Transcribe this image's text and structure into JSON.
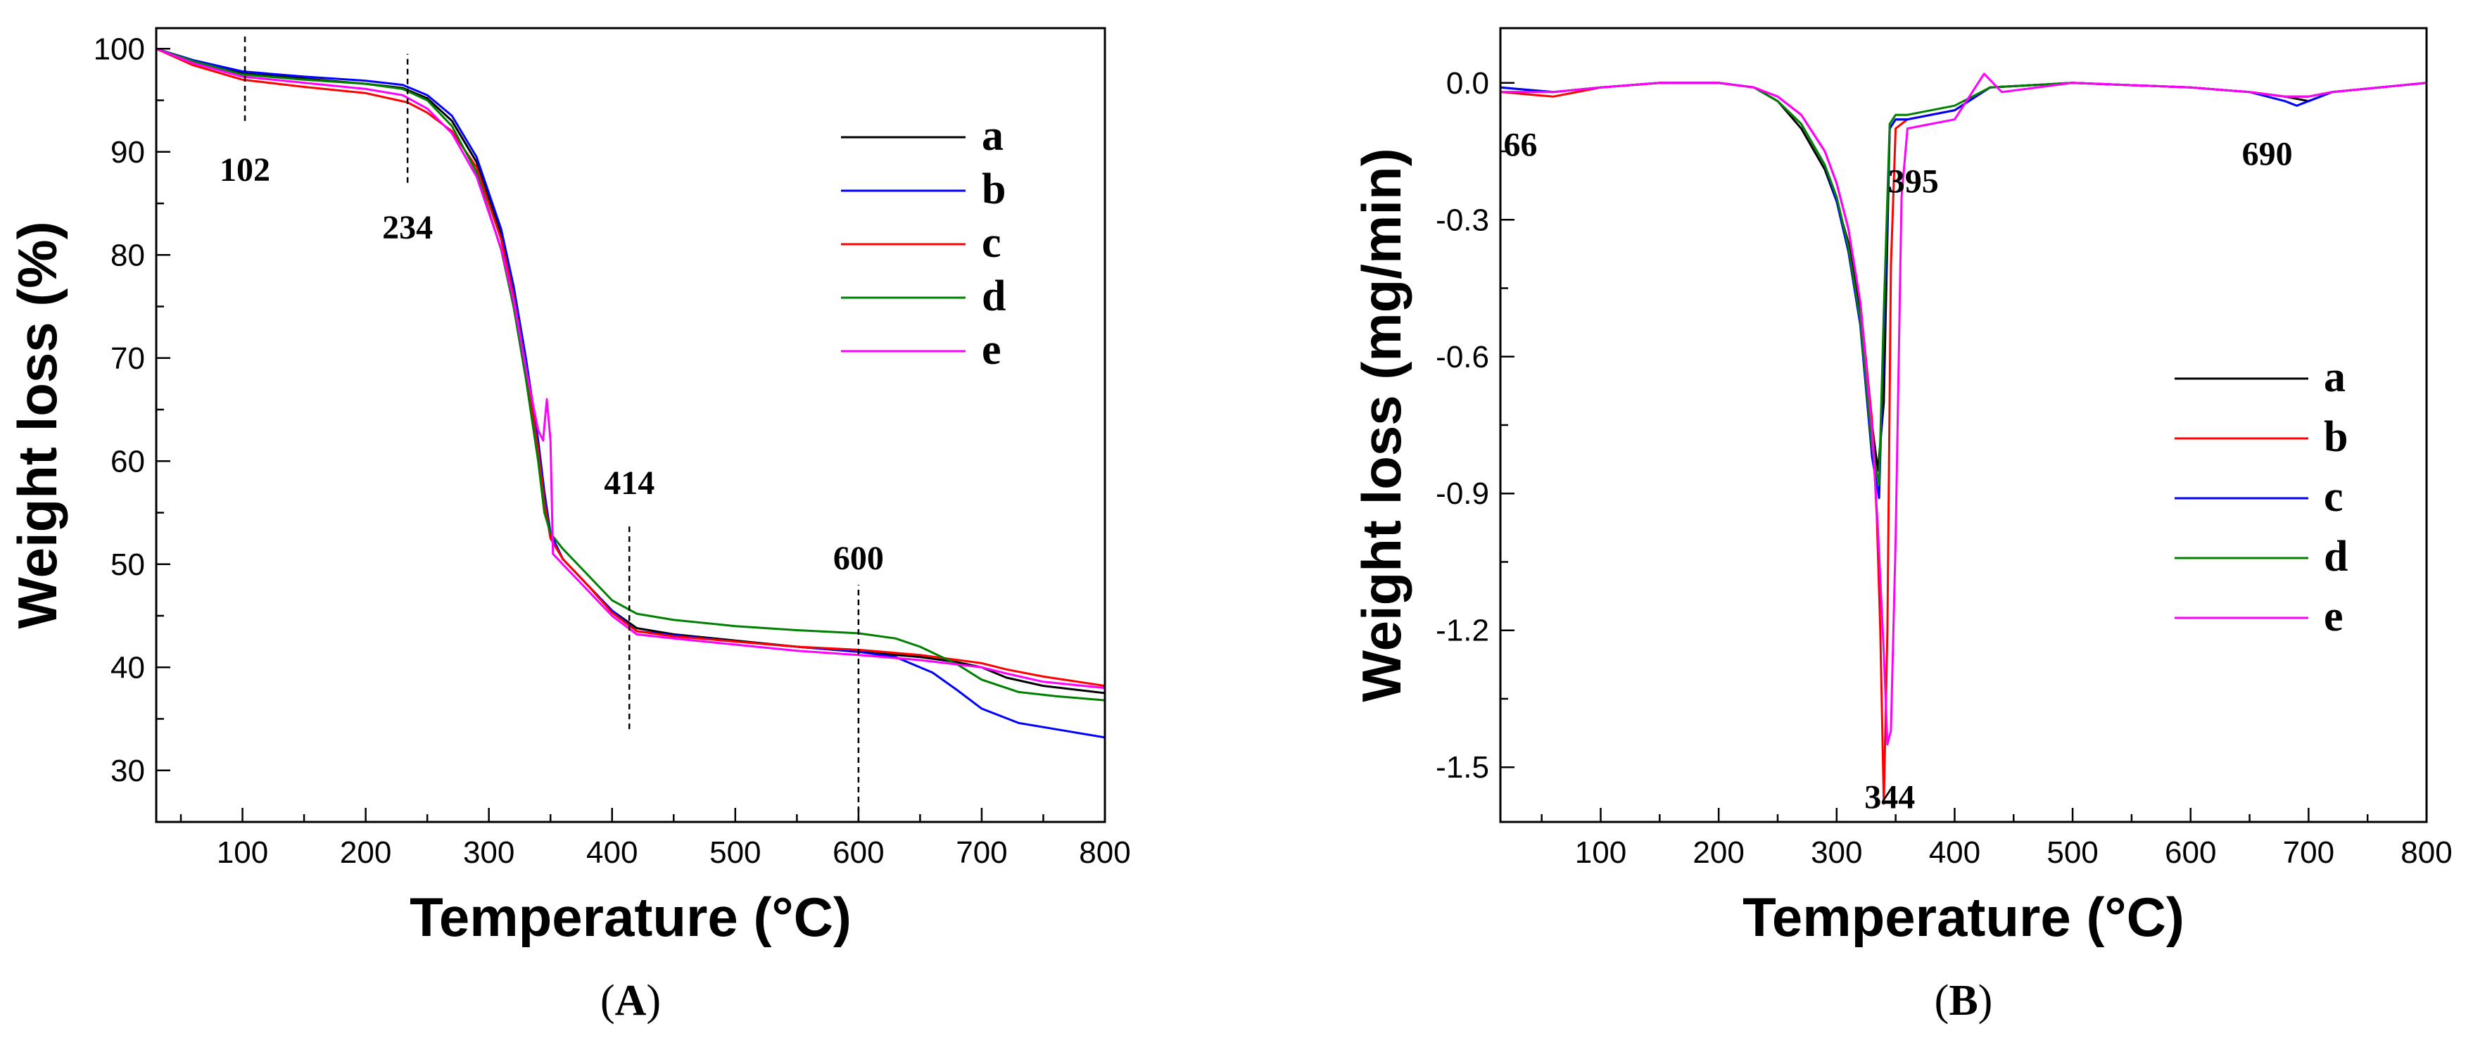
{
  "chart_data": [
    {
      "type": "line",
      "panel": "A",
      "caption_open": "(",
      "caption_letter": "A",
      "caption_close": ")",
      "xlabel": "Temperature (°C)",
      "ylabel": "Weight loss (%)",
      "xlim": [
        30,
        800
      ],
      "ylim": [
        25,
        102
      ],
      "xticks": [
        100,
        200,
        300,
        400,
        500,
        600,
        700,
        800
      ],
      "yticks": [
        30,
        40,
        50,
        60,
        70,
        80,
        90,
        100
      ],
      "legend_position": "top-right",
      "annotations": [
        {
          "text": "102",
          "x": 102,
          "y": 87.2,
          "line": [
            [
              102,
              93
            ],
            [
              102,
              101.5
            ]
          ]
        },
        {
          "text": "234",
          "x": 234,
          "y": 81.6,
          "line": [
            [
              234,
              87
            ],
            [
              234,
              99.5
            ]
          ]
        },
        {
          "text": "414",
          "x": 414,
          "y": 56.8,
          "line": [
            [
              414,
              34
            ],
            [
              414,
              54
            ]
          ]
        },
        {
          "text": "600",
          "x": 600,
          "y": 49.5,
          "line": [
            [
              600,
              25
            ],
            [
              600,
              48
            ]
          ]
        }
      ],
      "series": [
        {
          "name": "a",
          "color": "#000000",
          "x": [
            30,
            60,
            100,
            150,
            200,
            230,
            250,
            270,
            290,
            310,
            320,
            330,
            340,
            345,
            350,
            360,
            380,
            400,
            420,
            450,
            500,
            550,
            600,
            650,
            680,
            700,
            720,
            750,
            800
          ],
          "y": [
            100,
            98.8,
            97.6,
            97.1,
            96.6,
            96.2,
            95.2,
            93,
            89,
            82,
            77,
            70,
            62,
            57,
            53,
            50.5,
            48,
            45.5,
            43.8,
            43.2,
            42.6,
            42,
            41.5,
            41,
            40.5,
            40,
            39,
            38.2,
            37.5
          ]
        },
        {
          "name": "b",
          "color": "#0000ff",
          "x": [
            30,
            60,
            100,
            150,
            200,
            230,
            250,
            270,
            290,
            310,
            320,
            330,
            340,
            345,
            350,
            360,
            380,
            400,
            420,
            450,
            500,
            550,
            600,
            630,
            660,
            680,
            700,
            730,
            760,
            800
          ],
          "y": [
            100,
            98.9,
            97.8,
            97.3,
            96.9,
            96.5,
            95.5,
            93.5,
            89.5,
            82.5,
            77,
            70,
            62,
            57,
            53,
            50.5,
            48,
            45.5,
            43.5,
            43.1,
            42.5,
            42,
            41.5,
            41,
            39.5,
            37.8,
            36,
            34.6,
            34,
            33.2
          ]
        },
        {
          "name": "c",
          "color": "#ff0000",
          "x": [
            30,
            60,
            100,
            150,
            200,
            234,
            250,
            270,
            290,
            310,
            320,
            330,
            340,
            345,
            350,
            360,
            380,
            400,
            420,
            450,
            500,
            550,
            600,
            650,
            700,
            720,
            750,
            800
          ],
          "y": [
            100,
            98.4,
            97,
            96.3,
            95.7,
            94.8,
            93.8,
            92,
            88.5,
            81.5,
            76,
            69,
            61,
            56,
            52.5,
            50.5,
            48,
            45.3,
            43.5,
            43,
            42.5,
            42,
            41.7,
            41.2,
            40.4,
            39.8,
            39.1,
            38.2
          ]
        },
        {
          "name": "d",
          "color": "#008000",
          "x": [
            30,
            60,
            100,
            150,
            200,
            230,
            250,
            270,
            290,
            310,
            320,
            330,
            340,
            345,
            350,
            360,
            380,
            400,
            420,
            450,
            500,
            550,
            600,
            630,
            650,
            680,
            700,
            730,
            760,
            800
          ],
          "y": [
            100,
            98.8,
            97.5,
            97,
            96.6,
            96.1,
            95,
            92.5,
            88,
            80.5,
            75,
            68,
            60,
            55,
            53,
            51.5,
            49,
            46.5,
            45.2,
            44.6,
            44,
            43.6,
            43.3,
            42.8,
            42,
            40.3,
            38.8,
            37.6,
            37.2,
            36.8
          ]
        },
        {
          "name": "e",
          "color": "#ff00ff",
          "x": [
            30,
            60,
            100,
            150,
            200,
            230,
            250,
            270,
            290,
            310,
            320,
            330,
            340,
            344,
            347,
            350,
            352,
            360,
            380,
            400,
            420,
            450,
            500,
            550,
            600,
            650,
            700,
            720,
            750,
            800
          ],
          "y": [
            100,
            98.6,
            97.3,
            96.7,
            96.1,
            95.5,
            94.2,
            91.8,
            87.6,
            80.6,
            75.6,
            69,
            63,
            62,
            66,
            62,
            51,
            50,
            47.5,
            45,
            43.2,
            42.8,
            42.2,
            41.6,
            41.2,
            40.7,
            40,
            39.4,
            38.6,
            38
          ]
        }
      ]
    },
    {
      "type": "line",
      "panel": "B",
      "caption_open": "(",
      "caption_letter": "B",
      "caption_close": ")",
      "xlabel": "Temperature (°C)",
      "ylabel": "Weight loss (mg/min)",
      "xlim": [
        15,
        800
      ],
      "ylim": [
        -1.62,
        0.12
      ],
      "xticks": [
        100,
        200,
        300,
        400,
        500,
        600,
        700,
        800
      ],
      "yticks": [
        0.0,
        -0.3,
        -0.6,
        -0.9,
        -1.2,
        -1.5
      ],
      "ytick_labels": [
        "0.0",
        "-0.3",
        "-0.6",
        "-0.9",
        "-1.2",
        "-1.5"
      ],
      "legend_position": "bottom-right",
      "annotations": [
        {
          "text": "66",
          "x": 32,
          "y": -0.16
        },
        {
          "text": "395",
          "x": 365,
          "y": -0.24
        },
        {
          "text": "690",
          "x": 665,
          "y": -0.18
        },
        {
          "text": "344",
          "x": 345,
          "y": -1.59
        }
      ],
      "series": [
        {
          "name": "a",
          "color": "#000000",
          "x": [
            15,
            60,
            100,
            150,
            200,
            230,
            250,
            270,
            290,
            300,
            310,
            320,
            330,
            335,
            340,
            345,
            350,
            360,
            380,
            400,
            430,
            500,
            600,
            650,
            680,
            700,
            720,
            800
          ],
          "y": [
            -0.01,
            -0.02,
            -0.01,
            0.0,
            0.0,
            -0.01,
            -0.04,
            -0.1,
            -0.19,
            -0.26,
            -0.35,
            -0.5,
            -0.75,
            -0.85,
            -0.7,
            -0.1,
            -0.08,
            -0.08,
            -0.07,
            -0.06,
            -0.01,
            0.0,
            -0.01,
            -0.02,
            -0.03,
            -0.04,
            -0.02,
            0.0
          ]
        },
        {
          "name": "b",
          "color": "#ff0000",
          "x": [
            15,
            60,
            100,
            150,
            200,
            230,
            250,
            270,
            290,
            300,
            310,
            320,
            330,
            334,
            337,
            340,
            343,
            346,
            350,
            360,
            380,
            400,
            430,
            500,
            600,
            650,
            680,
            700,
            720,
            800
          ],
          "y": [
            -0.02,
            -0.03,
            -0.01,
            0.0,
            0.0,
            -0.01,
            -0.03,
            -0.07,
            -0.15,
            -0.22,
            -0.32,
            -0.48,
            -0.74,
            -0.95,
            -1.2,
            -1.58,
            -1.2,
            -0.4,
            -0.1,
            -0.08,
            -0.07,
            -0.06,
            -0.01,
            0.0,
            -0.01,
            -0.02,
            -0.03,
            -0.03,
            -0.02,
            0.0
          ]
        },
        {
          "name": "c",
          "color": "#0000ff",
          "x": [
            15,
            60,
            100,
            150,
            200,
            230,
            250,
            270,
            290,
            300,
            310,
            320,
            330,
            336,
            340,
            345,
            350,
            360,
            380,
            400,
            430,
            500,
            600,
            650,
            680,
            690,
            700,
            720,
            800
          ],
          "y": [
            -0.01,
            -0.02,
            -0.01,
            0.0,
            0.0,
            -0.01,
            -0.04,
            -0.09,
            -0.18,
            -0.26,
            -0.37,
            -0.53,
            -0.82,
            -0.91,
            -0.55,
            -0.1,
            -0.08,
            -0.08,
            -0.07,
            -0.06,
            -0.01,
            0.0,
            -0.01,
            -0.02,
            -0.04,
            -0.05,
            -0.04,
            -0.02,
            0.0
          ]
        },
        {
          "name": "d",
          "color": "#008000",
          "x": [
            15,
            60,
            100,
            150,
            200,
            230,
            250,
            270,
            290,
            300,
            310,
            320,
            330,
            336,
            340,
            345,
            350,
            360,
            380,
            400,
            430,
            500,
            600,
            650,
            680,
            700,
            720,
            800
          ],
          "y": [
            -0.02,
            -0.02,
            -0.01,
            0.0,
            0.0,
            -0.01,
            -0.04,
            -0.09,
            -0.18,
            -0.25,
            -0.36,
            -0.52,
            -0.8,
            -0.88,
            -0.5,
            -0.09,
            -0.07,
            -0.07,
            -0.06,
            -0.05,
            -0.01,
            0.0,
            -0.01,
            -0.02,
            -0.03,
            -0.03,
            -0.02,
            0.0
          ]
        },
        {
          "name": "e",
          "color": "#ff00ff",
          "x": [
            15,
            60,
            100,
            150,
            200,
            230,
            250,
            270,
            290,
            300,
            310,
            320,
            330,
            335,
            340,
            343,
            346,
            350,
            355,
            360,
            380,
            400,
            425,
            440,
            500,
            600,
            650,
            680,
            700,
            720,
            800
          ],
          "y": [
            -0.02,
            -0.02,
            -0.01,
            0.0,
            0.0,
            -0.01,
            -0.03,
            -0.07,
            -0.15,
            -0.22,
            -0.32,
            -0.48,
            -0.76,
            -0.98,
            -1.25,
            -1.45,
            -1.42,
            -1.0,
            -0.25,
            -0.1,
            -0.09,
            -0.08,
            0.02,
            -0.02,
            0.0,
            -0.01,
            -0.02,
            -0.03,
            -0.03,
            -0.02,
            0.0
          ]
        }
      ]
    }
  ]
}
